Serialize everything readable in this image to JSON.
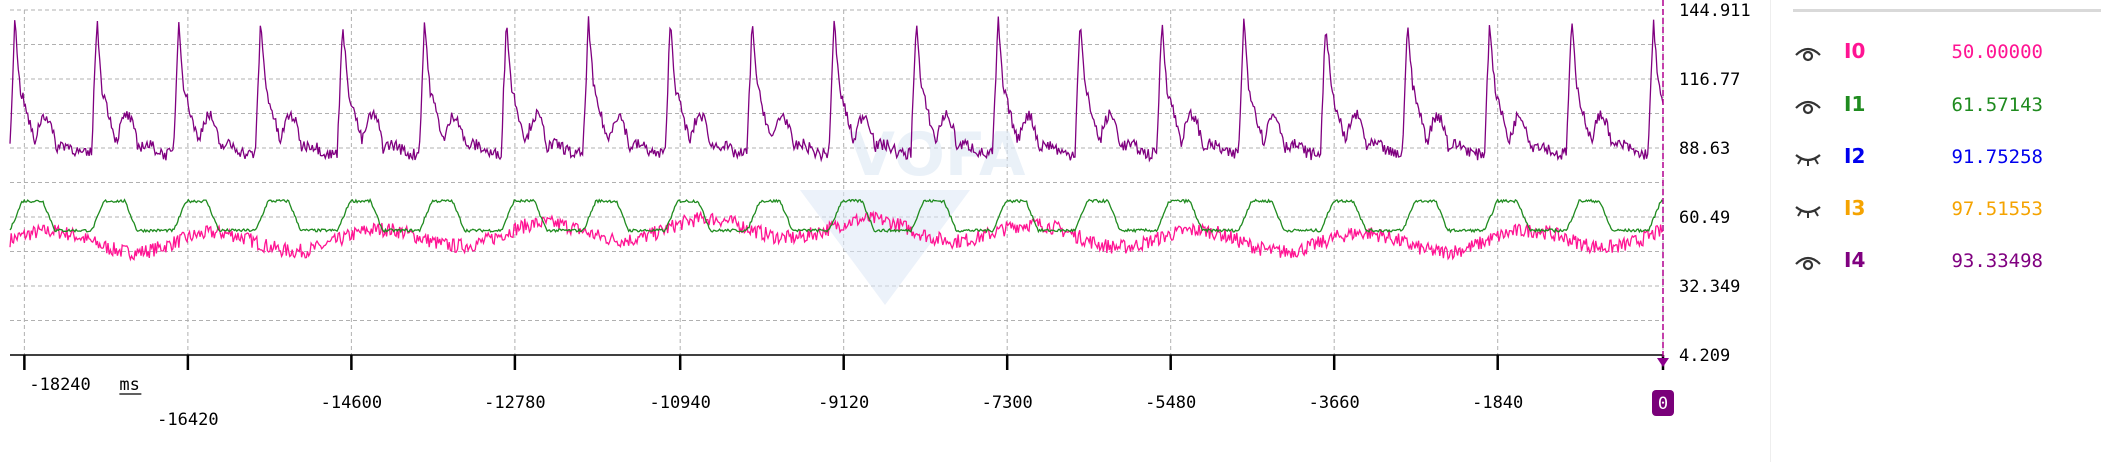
{
  "chart_data": {
    "type": "line",
    "x_unit": "ms",
    "xlim": [
      -18400,
      0
    ],
    "ylim": [
      4.209,
      144.911
    ],
    "y_ticks": [
      "144.911",
      "116.77",
      "88.63",
      "60.49",
      "32.349",
      "4.209"
    ],
    "x_ticks": [
      "-18240",
      "-16420",
      "-14600",
      "-12780",
      "-10940",
      "-9120",
      "-7300",
      "-5480",
      "-3660",
      "-1840",
      "0"
    ],
    "x_tick_values": [
      -18240,
      -16420,
      -14600,
      -12780,
      -10940,
      -9120,
      -7300,
      -5480,
      -3660,
      -1840,
      0
    ],
    "grid": true,
    "watermark": "VOFA",
    "series": [
      {
        "name": "I0",
        "color": "#ff1493",
        "visible": true,
        "value": "50.00000",
        "mode": "erratic",
        "period": 1825,
        "base": 53,
        "amp": 4,
        "noise": 3
      },
      {
        "name": "I1",
        "color": "#1f8b1f",
        "visible": true,
        "value": "61.57143",
        "mode": "plateau",
        "period": 912,
        "base": 55,
        "amp": 12,
        "noise": 0.6
      },
      {
        "name": "I2",
        "color": "#0000ee",
        "visible": false,
        "value": "91.75258"
      },
      {
        "name": "I3",
        "color": "#f5a300",
        "visible": false,
        "value": "97.51553"
      },
      {
        "name": "I4",
        "color": "#800080",
        "visible": true,
        "value": "93.33498",
        "mode": "spike",
        "period": 912,
        "base": 91,
        "amp": 50,
        "noise": 2.5
      }
    ]
  }
}
